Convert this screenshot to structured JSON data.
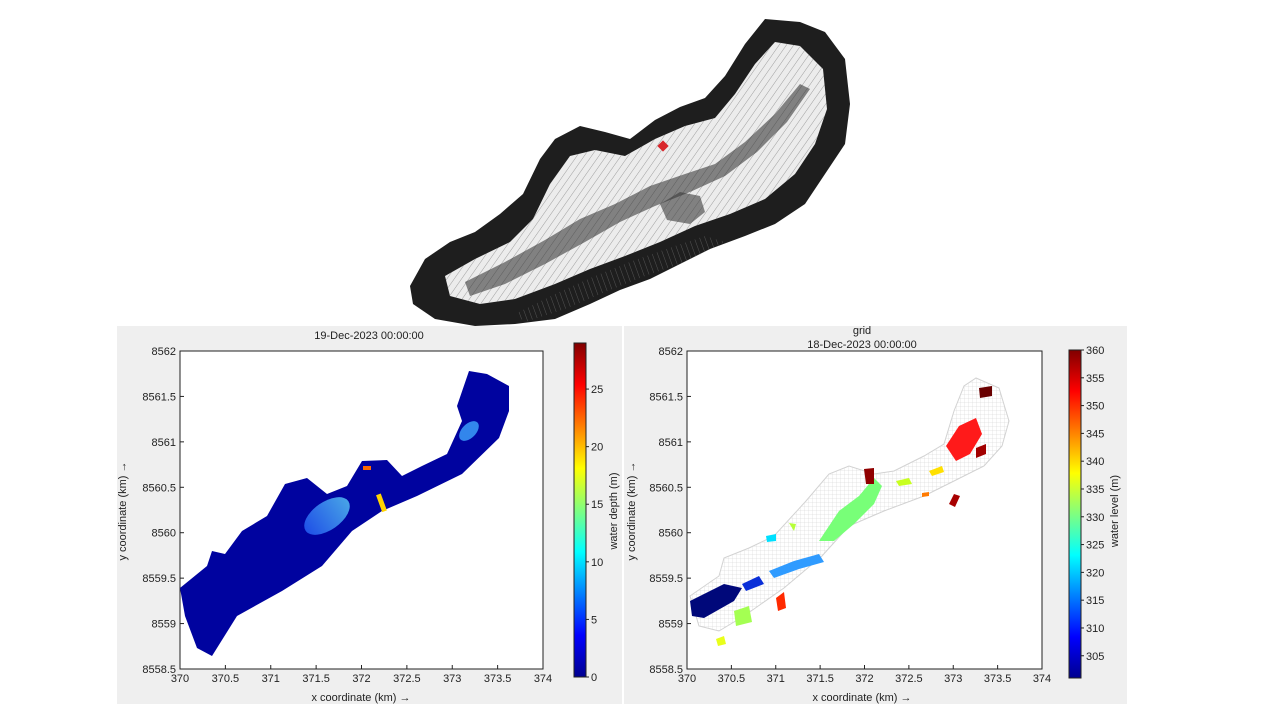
{
  "chart_data": [
    {
      "type": "heatmap",
      "title": "19-Dec-2023 00:00:00",
      "xlabel": "x coordinate (km) →",
      "ylabel": "y coordinate (km) →",
      "xlim": [
        370,
        374
      ],
      "ylim": [
        8558.5,
        8562
      ],
      "xticks": [
        "370",
        "370.5",
        "371",
        "371.5",
        "372",
        "372.5",
        "373",
        "373.5",
        "374"
      ],
      "yticks": [
        "8558.5",
        "8559",
        "8559.5",
        "8560",
        "8560.5",
        "8561",
        "8561.5",
        "8562"
      ],
      "colorbar": {
        "label": "water depth (m)",
        "range": [
          0,
          29
        ],
        "ticks": [
          "0",
          "5",
          "10",
          "15",
          "20",
          "25"
        ],
        "colormap": "jet"
      }
    },
    {
      "type": "heatmap",
      "title": "grid",
      "subtitle": "18-Dec-2023 00:00:00",
      "xlabel": "x coordinate (km) →",
      "ylabel": "y coordinate (km) →",
      "xlim": [
        370,
        374
      ],
      "ylim": [
        8558.5,
        8562
      ],
      "xticks": [
        "370",
        "370.5",
        "371",
        "371.5",
        "372",
        "372.5",
        "373",
        "373.5",
        "374"
      ],
      "yticks": [
        "8558.5",
        "8559",
        "8559.5",
        "8560",
        "8560.5",
        "8561",
        "8561.5",
        "8562"
      ],
      "colorbar": {
        "label": "water level (m)",
        "range": [
          301,
          360
        ],
        "ticks": [
          "305",
          "310",
          "315",
          "320",
          "325",
          "330",
          "335",
          "340",
          "345",
          "350",
          "355",
          "360"
        ],
        "colormap": "jet"
      }
    }
  ],
  "colors": {
    "panel_bg": "#efefef",
    "mesh_fill": "#e6e6e6",
    "mesh_edge": "#1e1e1e",
    "marker": "#d9262b"
  }
}
